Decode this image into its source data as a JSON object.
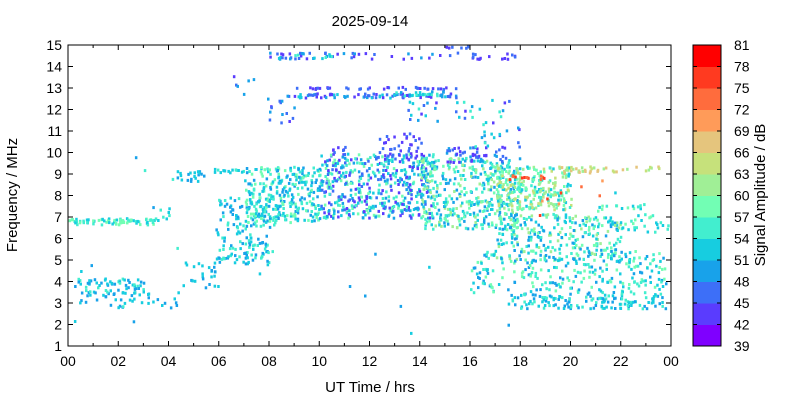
{
  "chart_data": {
    "type": "scatter",
    "title": "2025-09-14",
    "xlabel": "UT Time / hrs",
    "ylabel": "Frequency / MHz",
    "xlim": [
      0,
      24
    ],
    "ylim": [
      1,
      15
    ],
    "xticks": [
      "00",
      "02",
      "04",
      "06",
      "08",
      "10",
      "12",
      "14",
      "16",
      "18",
      "20",
      "22",
      "00"
    ],
    "yticks": [
      "1",
      "2",
      "3",
      "4",
      "5",
      "6",
      "7",
      "8",
      "9",
      "10",
      "11",
      "12",
      "13",
      "14",
      "15"
    ],
    "colorbar": {
      "label": "Signal Amplitude / dB",
      "min": 39,
      "max": 81,
      "ticks": [
        "39",
        "42",
        "45",
        "48",
        "51",
        "54",
        "57",
        "60",
        "63",
        "66",
        "69",
        "72",
        "75",
        "78",
        "81"
      ],
      "colors": [
        "#7f00ff",
        "#5a3cfe",
        "#3d6ff8",
        "#18a2ea",
        "#17cde0",
        "#42eecf",
        "#72feb4",
        "#a0ef96",
        "#c6e17b",
        "#e5c57d",
        "#ff9b59",
        "#ff6c3d",
        "#ff3a20",
        "#ff0000"
      ]
    },
    "grid": false,
    "legend": "none",
    "clusters": [
      {
        "x": [
          0.0,
          3.4
        ],
        "y": [
          6.7,
          7.0
        ],
        "density": 70,
        "amp": [
          51,
          60
        ]
      },
      {
        "x": [
          3.4,
          4.0
        ],
        "y": [
          6.9,
          7.5
        ],
        "density": 8,
        "amp": [
          51,
          57
        ]
      },
      {
        "x": [
          0.2,
          3.0
        ],
        "y": [
          3.5,
          4.2
        ],
        "density": 60,
        "amp": [
          48,
          57
        ]
      },
      {
        "x": [
          0.3,
          4.5
        ],
        "y": [
          2.8,
          3.6
        ],
        "density": 40,
        "amp": [
          48,
          54
        ]
      },
      {
        "x": [
          4.3,
          5.4
        ],
        "y": [
          8.7,
          9.2
        ],
        "density": 20,
        "amp": [
          48,
          54
        ]
      },
      {
        "x": [
          4.5,
          6.0
        ],
        "y": [
          3.7,
          5.0
        ],
        "density": 25,
        "amp": [
          48,
          54
        ]
      },
      {
        "x": [
          5.8,
          8.0
        ],
        "y": [
          4.8,
          8.0
        ],
        "density": 160,
        "amp": [
          48,
          57
        ]
      },
      {
        "x": [
          5.8,
          7.0
        ],
        "y": [
          9.1,
          9.3
        ],
        "density": 15,
        "amp": [
          51,
          57
        ]
      },
      {
        "x": [
          7.0,
          10.0
        ],
        "y": [
          6.8,
          9.4
        ],
        "density": 280,
        "amp": [
          48,
          60
        ]
      },
      {
        "x": [
          10.0,
          14.5
        ],
        "y": [
          7.0,
          10.0
        ],
        "density": 480,
        "amp": [
          42,
          60
        ]
      },
      {
        "x": [
          12.3,
          14.2
        ],
        "y": [
          9.8,
          11.0
        ],
        "density": 40,
        "amp": [
          42,
          48
        ]
      },
      {
        "x": [
          10.5,
          11.0
        ],
        "y": [
          9.8,
          10.5
        ],
        "density": 10,
        "amp": [
          42,
          48
        ]
      },
      {
        "x": [
          14.0,
          18.0
        ],
        "y": [
          6.5,
          9.8
        ],
        "density": 420,
        "amp": [
          48,
          63
        ]
      },
      {
        "x": [
          15.0,
          17.5
        ],
        "y": [
          9.6,
          10.3
        ],
        "density": 50,
        "amp": [
          42,
          51
        ]
      },
      {
        "x": [
          17.0,
          20.0
        ],
        "y": [
          7.4,
          9.4
        ],
        "density": 240,
        "amp": [
          51,
          66
        ]
      },
      {
        "x": [
          19.5,
          23.5
        ],
        "y": [
          9.1,
          9.4
        ],
        "density": 40,
        "amp": [
          60,
          69
        ]
      },
      {
        "x": [
          17.0,
          22.0
        ],
        "y": [
          5.0,
          7.2
        ],
        "density": 260,
        "amp": [
          48,
          63
        ]
      },
      {
        "x": [
          16.0,
          23.8
        ],
        "y": [
          3.5,
          5.5
        ],
        "density": 240,
        "amp": [
          48,
          60
        ]
      },
      {
        "x": [
          17.5,
          23.8
        ],
        "y": [
          2.8,
          3.5
        ],
        "density": 140,
        "amp": [
          48,
          57
        ]
      },
      {
        "x": [
          21.0,
          24.0
        ],
        "y": [
          6.3,
          7.6
        ],
        "density": 50,
        "amp": [
          51,
          60
        ]
      },
      {
        "x": [
          8.0,
          10.5
        ],
        "y": [
          14.4,
          14.7
        ],
        "density": 35,
        "amp": [
          42,
          57
        ]
      },
      {
        "x": [
          10.5,
          15.5
        ],
        "y": [
          14.4,
          14.7
        ],
        "density": 20,
        "amp": [
          42,
          51
        ]
      },
      {
        "x": [
          16.0,
          18.0
        ],
        "y": [
          14.4,
          14.7
        ],
        "density": 15,
        "amp": [
          42,
          48
        ]
      },
      {
        "x": [
          15.0,
          16.0
        ],
        "y": [
          14.9,
          15.0
        ],
        "density": 6,
        "amp": [
          42,
          48
        ]
      },
      {
        "x": [
          8.5,
          15.5
        ],
        "y": [
          12.6,
          12.8
        ],
        "density": 80,
        "amp": [
          42,
          54
        ]
      },
      {
        "x": [
          9.0,
          15.5
        ],
        "y": [
          13.0,
          13.1
        ],
        "density": 35,
        "amp": [
          42,
          48
        ]
      },
      {
        "x": [
          13.0,
          15.0
        ],
        "y": [
          12.7,
          12.9
        ],
        "density": 25,
        "amp": [
          48,
          57
        ]
      },
      {
        "x": [
          7.8,
          9.0
        ],
        "y": [
          11.4,
          12.6
        ],
        "density": 14,
        "amp": [
          42,
          51
        ]
      },
      {
        "x": [
          6.5,
          7.5
        ],
        "y": [
          12.3,
          13.7
        ],
        "density": 6,
        "amp": [
          42,
          51
        ]
      },
      {
        "x": [
          13.5,
          18.0
        ],
        "y": [
          11.5,
          12.5
        ],
        "density": 30,
        "amp": [
          42,
          57
        ]
      },
      {
        "x": [
          16.0,
          18.0
        ],
        "y": [
          10.3,
          11.5
        ],
        "density": 20,
        "amp": [
          42,
          57
        ]
      },
      {
        "x": [
          17.0,
          19.0
        ],
        "y": [
          8.8,
          9.0
        ],
        "density": 12,
        "amp": [
          72,
          78
        ]
      },
      {
        "x": [
          18.5,
          21.5
        ],
        "y": [
          7.0,
          9.3
        ],
        "density": 8,
        "amp": [
          69,
          78
        ]
      },
      {
        "x": [
          0.0,
          24.0
        ],
        "y": [
          1.5,
          10.0
        ],
        "density": 40,
        "amp": [
          48,
          57
        ]
      }
    ]
  }
}
